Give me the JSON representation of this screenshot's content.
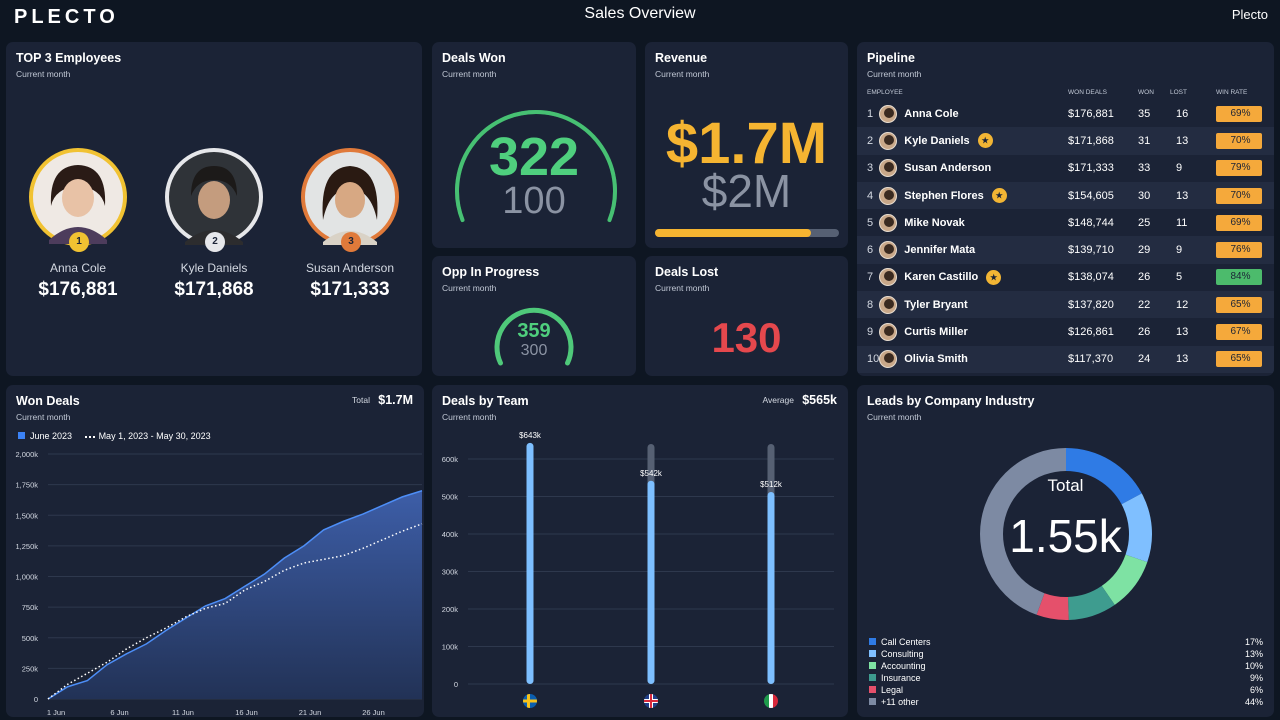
{
  "header": {
    "logo": "PLECTO",
    "title": "Sales Overview",
    "brand": "Plecto"
  },
  "top3": {
    "title": "TOP 3 Employees",
    "subtitle": "Current month",
    "employees": [
      {
        "rank": "1",
        "name": "Anna Cole",
        "value": "$176,881"
      },
      {
        "rank": "2",
        "name": "Kyle Daniels",
        "value": "$171,868"
      },
      {
        "rank": "3",
        "name": "Susan Anderson",
        "value": "$171,333"
      }
    ]
  },
  "deals_won": {
    "title": "Deals Won",
    "subtitle": "Current month",
    "value": "322",
    "target": "100"
  },
  "revenue": {
    "title": "Revenue",
    "subtitle": "Current month",
    "value": "$1.7M",
    "target": "$2M",
    "progress": 0.85
  },
  "opp": {
    "title": "Opp In Progress",
    "subtitle": "Current month",
    "value": "359",
    "target": "300"
  },
  "deals_lost": {
    "title": "Deals Lost",
    "subtitle": "Current month",
    "value": "130"
  },
  "pipeline": {
    "title": "Pipeline",
    "subtitle": "Current month",
    "headers": {
      "employee": "EMPLOYEE",
      "won_deals": "WON DEALS",
      "won": "WON",
      "lost": "LOST",
      "win_rate": "WIN RATE"
    },
    "rows": [
      {
        "n": "1",
        "name": "Anna Cole",
        "badge": false,
        "deals": "$176,881",
        "won": "35",
        "lost": "16",
        "rate": "69%",
        "color": "#f5a93b"
      },
      {
        "n": "2",
        "name": "Kyle Daniels",
        "badge": true,
        "deals": "$171,868",
        "won": "31",
        "lost": "13",
        "rate": "70%",
        "color": "#f5a93b"
      },
      {
        "n": "3",
        "name": "Susan Anderson",
        "badge": false,
        "deals": "$171,333",
        "won": "33",
        "lost": "9",
        "rate": "79%",
        "color": "#f5a93b"
      },
      {
        "n": "4",
        "name": "Stephen Flores",
        "badge": true,
        "deals": "$154,605",
        "won": "30",
        "lost": "13",
        "rate": "70%",
        "color": "#f5a93b"
      },
      {
        "n": "5",
        "name": "Mike Novak",
        "badge": false,
        "deals": "$148,744",
        "won": "25",
        "lost": "11",
        "rate": "69%",
        "color": "#f5a93b"
      },
      {
        "n": "6",
        "name": "Jennifer Mata",
        "badge": false,
        "deals": "$139,710",
        "won": "29",
        "lost": "9",
        "rate": "76%",
        "color": "#f5a93b"
      },
      {
        "n": "7",
        "name": "Karen Castillo",
        "badge": true,
        "deals": "$138,074",
        "won": "26",
        "lost": "5",
        "rate": "84%",
        "color": "#4cbb6c"
      },
      {
        "n": "8",
        "name": "Tyler Bryant",
        "badge": false,
        "deals": "$137,820",
        "won": "22",
        "lost": "12",
        "rate": "65%",
        "color": "#f5a93b"
      },
      {
        "n": "9",
        "name": "Curtis Miller",
        "badge": false,
        "deals": "$126,861",
        "won": "26",
        "lost": "13",
        "rate": "67%",
        "color": "#f5a93b"
      },
      {
        "n": "10",
        "name": "Olivia Smith",
        "badge": false,
        "deals": "$117,370",
        "won": "24",
        "lost": "13",
        "rate": "65%",
        "color": "#f5a93b"
      }
    ]
  },
  "won_deals_chart": {
    "title": "Won Deals",
    "subtitle": "Current month",
    "total_label": "Total",
    "total": "$1.7M"
  },
  "deals_team_chart": {
    "title": "Deals by Team",
    "subtitle": "Current month",
    "avg_label": "Average",
    "avg": "$565k"
  },
  "leads": {
    "title": "Leads by Company Industry",
    "subtitle": "Current month",
    "center_label": "Total",
    "center_value": "1.55k",
    "items": [
      {
        "label": "Call Centers",
        "pct": "17%",
        "value": 17,
        "color": "#2f7be5"
      },
      {
        "label": "Consulting",
        "pct": "13%",
        "value": 13,
        "color": "#7fbfff"
      },
      {
        "label": "Accounting",
        "pct": "10%",
        "value": 10,
        "color": "#7ee2a3"
      },
      {
        "label": "Insurance",
        "pct": "9%",
        "value": 9,
        "color": "#3e9c8f"
      },
      {
        "label": "Legal",
        "pct": "6%",
        "value": 6,
        "color": "#e5506b"
      },
      {
        "label": "+11 other",
        "pct": "44%",
        "value": 44,
        "color": "#7d8aa3"
      }
    ]
  },
  "chart_data": [
    {
      "type": "area",
      "title": "Won Deals",
      "series": [
        {
          "name": "June 2023",
          "values": [
            0,
            100,
            150,
            280,
            370,
            450,
            560,
            660,
            760,
            820,
            920,
            1020,
            1150,
            1250,
            1380,
            1450,
            1510,
            1580,
            1650,
            1700
          ]
        },
        {
          "name": "May 1, 2023 - May 30, 2023",
          "values": [
            0,
            120,
            210,
            300,
            410,
            500,
            580,
            670,
            740,
            780,
            890,
            960,
            1050,
            1110,
            1140,
            1170,
            1230,
            1300,
            1370,
            1430
          ]
        }
      ],
      "x_ticks": [
        "1 Jun",
        "6 Jun",
        "11 Jun",
        "16 Jun",
        "21 Jun",
        "26 Jun"
      ],
      "y_ticks": [
        "0",
        "250k",
        "500k",
        "750k",
        "1,000k",
        "1,250k",
        "1,500k",
        "1,750k",
        "2,000k"
      ],
      "ylim": [
        0,
        2000
      ]
    },
    {
      "type": "bar",
      "title": "Deals by Team",
      "categories": [
        "Sweden",
        "United Kingdom",
        "Italy"
      ],
      "values": [
        643,
        542,
        512
      ],
      "targets": [
        640,
        640,
        640
      ],
      "data_labels": [
        "$643k",
        "$542k",
        "$512k"
      ],
      "y_ticks": [
        "0",
        "100k",
        "200k",
        "300k",
        "400k",
        "500k",
        "600k"
      ],
      "ylim": [
        0,
        600
      ]
    }
  ]
}
